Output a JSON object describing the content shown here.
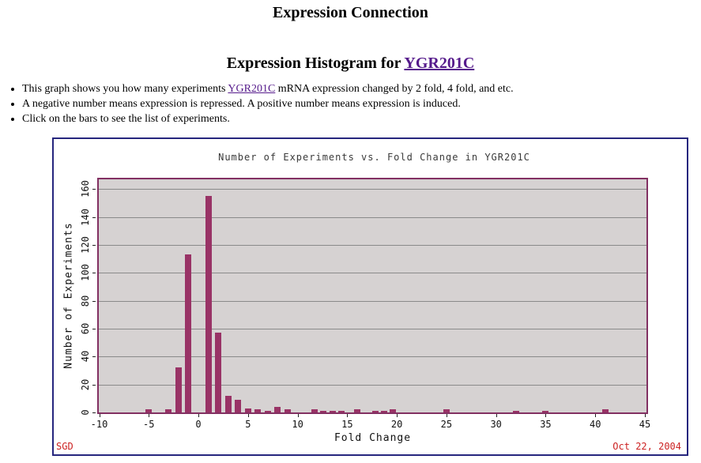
{
  "page": {
    "title": "Expression Connection",
    "subtitle_prefix": "Expression Histogram for ",
    "gene_link": "YGR201C",
    "bullets": [
      {
        "pre": "This graph shows you how many experiments ",
        "link": "YGR201C",
        "post": " mRNA expression changed by 2 fold, 4 fold, and etc."
      },
      {
        "pre": "A negative number means expression is repressed. A positive number means expression is induced.",
        "link": "",
        "post": ""
      },
      {
        "pre": "Click on the bars to see the list of experiments.",
        "link": "",
        "post": ""
      }
    ]
  },
  "chart_footer": {
    "left": "SGD",
    "right": "Oct 22, 2004"
  },
  "chart_data": {
    "type": "bar",
    "title": "Number of Experiments vs. Fold Change in YGR201C",
    "xlabel": "Fold Change",
    "ylabel": "Number of Experiments",
    "xlim": [
      -10.04,
      45.16
    ],
    "ylim": [
      0,
      167
    ],
    "x_ticks": [
      -10,
      -5,
      0,
      5,
      10,
      15,
      20,
      25,
      30,
      35,
      40,
      45
    ],
    "y_ticks": [
      0,
      20,
      40,
      60,
      80,
      100,
      120,
      140,
      160
    ],
    "grid": "horizontal",
    "legend": "none",
    "bars": [
      {
        "fold": -5,
        "count": 2
      },
      {
        "fold": -3,
        "count": 2
      },
      {
        "fold": -2,
        "count": 32
      },
      {
        "fold": -1,
        "count": 113
      },
      {
        "fold": 1,
        "count": 155
      },
      {
        "fold": 2,
        "count": 57
      },
      {
        "fold": 3,
        "count": 12
      },
      {
        "fold": 4,
        "count": 9
      },
      {
        "fold": 5,
        "count": 3
      },
      {
        "fold": 6,
        "count": 2
      },
      {
        "fold": 7,
        "count": 1
      },
      {
        "fold": 8,
        "count": 4
      },
      {
        "fold": 9,
        "count": 2
      },
      {
        "fold": 11.7,
        "count": 2
      },
      {
        "fold": 12.6,
        "count": 1
      },
      {
        "fold": 13.5,
        "count": 1
      },
      {
        "fold": 14.4,
        "count": 1
      },
      {
        "fold": 16,
        "count": 2
      },
      {
        "fold": 17.8,
        "count": 1
      },
      {
        "fold": 18.7,
        "count": 1
      },
      {
        "fold": 19.6,
        "count": 2
      },
      {
        "fold": 25,
        "count": 2
      },
      {
        "fold": 32,
        "count": 1
      },
      {
        "fold": 35,
        "count": 1
      },
      {
        "fold": 41,
        "count": 2
      }
    ],
    "colors": {
      "bar": "#993366",
      "plot_bg": "#d6d2d2",
      "plot_frame": "#823062",
      "grid": "#8a8a8a",
      "box_border": "#26267e",
      "footer_text": "#cc2222",
      "link": "#551a8b"
    }
  }
}
